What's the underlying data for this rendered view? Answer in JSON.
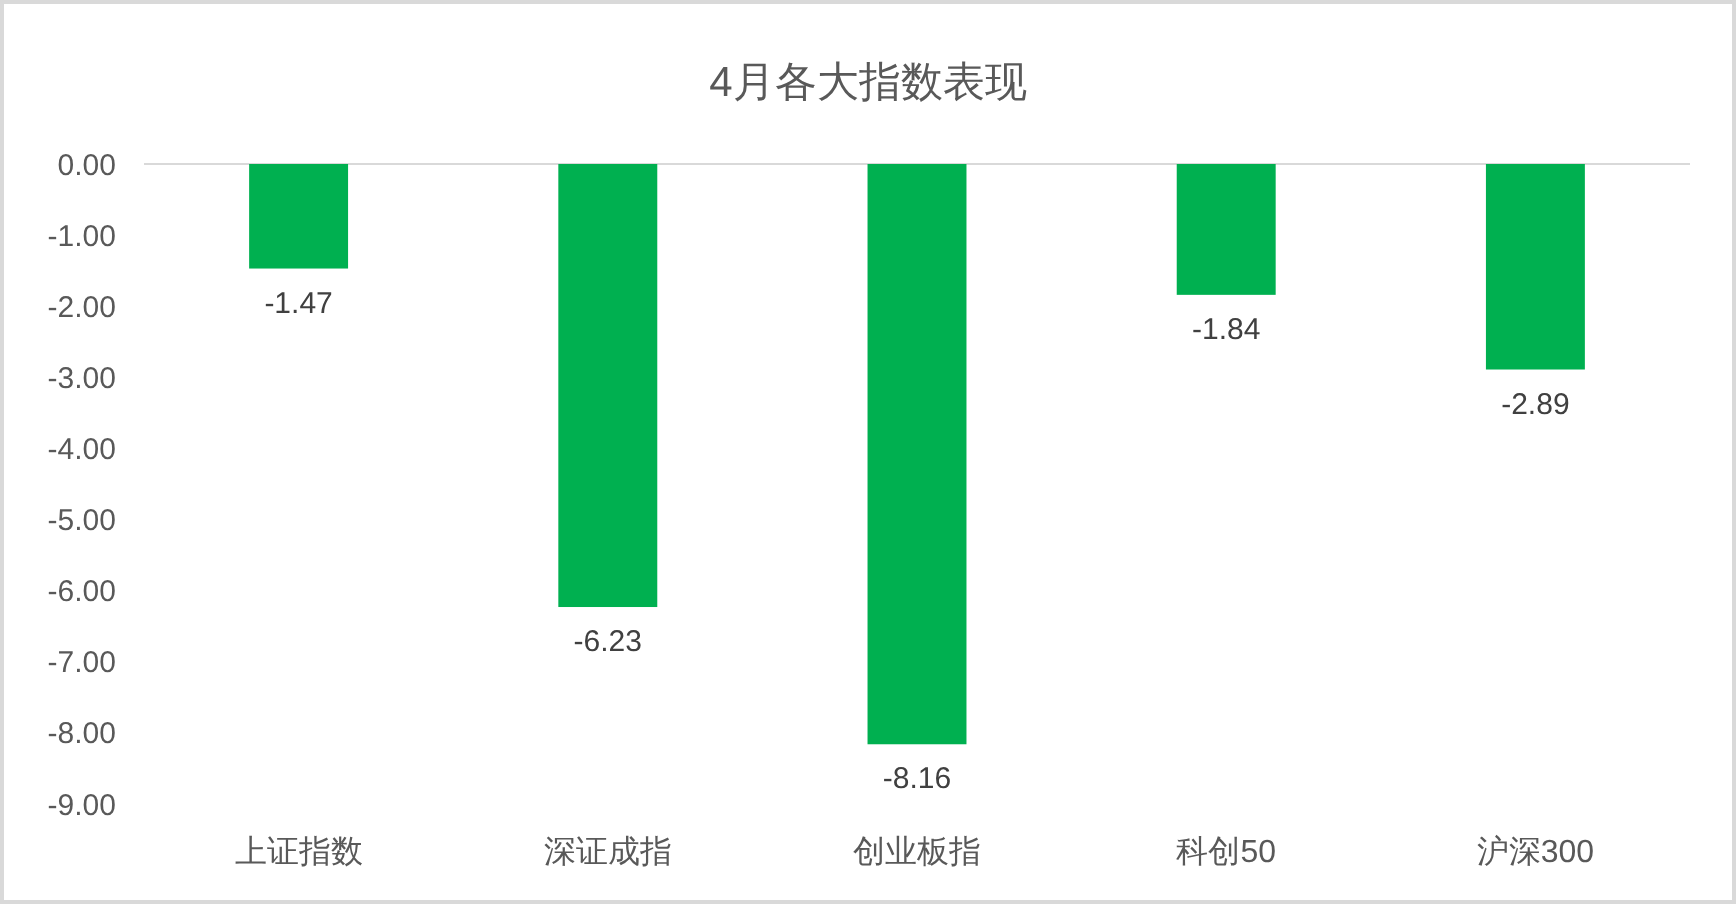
{
  "chart_data": {
    "type": "bar",
    "title": "4月各大指数表现",
    "categories": [
      "上证指数",
      "深证成指",
      "创业板指",
      "科创50",
      "沪深300"
    ],
    "values": [
      -1.47,
      -6.23,
      -8.16,
      -1.84,
      -2.89
    ],
    "color": "#00b050",
    "ylim": [
      -9,
      0
    ],
    "yticks": [
      {
        "value": 0,
        "label": "0.00"
      },
      {
        "value": -1,
        "label": "-1.00"
      },
      {
        "value": -2,
        "label": "-2.00"
      },
      {
        "value": -3,
        "label": "-3.00"
      },
      {
        "value": -4,
        "label": "-4.00"
      },
      {
        "value": -5,
        "label": "-5.00"
      },
      {
        "value": -6,
        "label": "-6.00"
      },
      {
        "value": -7,
        "label": "-7.00"
      },
      {
        "value": -8,
        "label": "-8.00"
      },
      {
        "value": -9,
        "label": "-9.00"
      }
    ],
    "data_labels": true
  }
}
